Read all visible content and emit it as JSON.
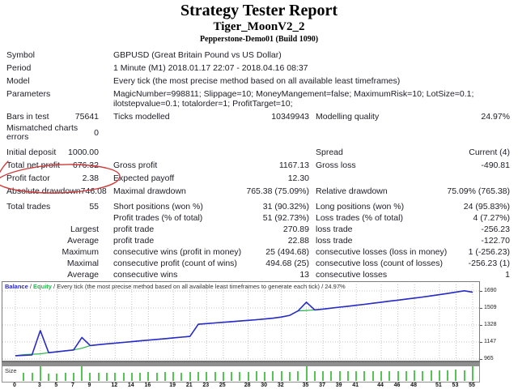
{
  "header": {
    "title": "Strategy Tester Report",
    "subtitle": "Tiger_MoonV2_2",
    "server": "Pepperstone-Demo01 (Build 1090)"
  },
  "report": {
    "rows": [
      {
        "a": "Symbol",
        "wide": "GBPUSD (Great Britain Pound vs US Dollar)"
      },
      {
        "a": "Period",
        "wide": "1 Minute (M1) 2018.01.17 22:07 - 2018.04.16 08:37"
      },
      {
        "a": "Model",
        "wide": "Every tick (the most precise method based on all available least timeframes)"
      },
      {
        "a": "Parameters",
        "wide": "MagicNumber=998811; Slippage=10; MoneyMangement=false; MaximumRisk=10; LotSize=0.1; ilotstepvalue=0.1; totalorder=1; ProfitTarget=10;",
        "tall": "p"
      },
      {
        "gap": true
      },
      {
        "a": "Bars in test",
        "b": "75641",
        "c": "Ticks modelled",
        "d": "10349943",
        "e": "Modelling quality",
        "f": "24.97%"
      },
      {
        "a": "Mismatched charts errors",
        "b": "0",
        "tall": "m"
      },
      {
        "gap": true
      },
      {
        "a": "Initial deposit",
        "b": "1000.00",
        "c": "",
        "d": "",
        "e": "Spread",
        "f": "Current (4)"
      },
      {
        "a": "Total net profit",
        "b": "676.32",
        "c": "Gross profit",
        "d": "1167.13",
        "e": "Gross loss",
        "f": "-490.81"
      },
      {
        "a": "Profit factor",
        "b": "2.38",
        "c": "Expected payoff",
        "d": "12.30",
        "e": "",
        "f": ""
      },
      {
        "a": "Absolute drawdown",
        "b": "746.08",
        "c": "Maximal drawdown",
        "d": "765.38 (75.09%)",
        "e": "Relative drawdown",
        "f": "75.09% (765.38)"
      },
      {
        "gap": true
      },
      {
        "a": "Total trades",
        "b": "55",
        "c": "Short positions (won %)",
        "d": "31 (90.32%)",
        "e": "Long positions (won %)",
        "f": "24 (95.83%)",
        "s": true
      },
      {
        "a": "",
        "b": "",
        "c": "Profit trades (% of total)",
        "d": "51 (92.73%)",
        "e": "Loss trades (% of total)",
        "f": "4 (7.27%)",
        "s": true
      },
      {
        "a": "",
        "b": "Largest",
        "c": "profit trade",
        "d": "270.89",
        "e": "loss trade",
        "f": "-256.23",
        "s": true
      },
      {
        "a": "",
        "b": "Average",
        "c": "profit trade",
        "d": "22.88",
        "e": "loss trade",
        "f": "-122.70",
        "s": true
      },
      {
        "a": "",
        "b": "Maximum",
        "c": "consecutive wins (profit in money)",
        "d": "25 (494.68)",
        "e": "consecutive losses (loss in money)",
        "f": "1 (-256.23)",
        "s": true
      },
      {
        "a": "",
        "b": "Maximal",
        "c": "consecutive profit (count of wins)",
        "d": "494.68 (25)",
        "e": "consecutive loss (count of losses)",
        "f": "-256.23 (1)",
        "s": true
      },
      {
        "a": "",
        "b": "Average",
        "c": "consecutive wins",
        "d": "13",
        "e": "consecutive losses",
        "f": "1",
        "s": true
      }
    ]
  },
  "annotation": {
    "target": "profit-factor-row",
    "color": "#cf3a3a"
  },
  "chart_data": {
    "type": "line",
    "legend": {
      "balance_label": "Balance",
      "sep": " / ",
      "equity_label": "Equity",
      "model_note": "Every tick (the most precise method based on all available least timeframes to generate each tick)",
      "quality": "24.97%"
    },
    "ylim": [
      965,
      1690
    ],
    "y_ticks": [
      1690,
      1509,
      1328,
      1147,
      965
    ],
    "x_ticks": [
      0,
      3,
      5,
      7,
      9,
      12,
      14,
      16,
      19,
      21,
      23,
      25,
      28,
      30,
      32,
      35,
      37,
      39,
      41,
      44,
      46,
      48,
      51,
      53,
      55
    ],
    "x_range": [
      0,
      55
    ],
    "grid": "dotted",
    "series": [
      {
        "name": "Equity",
        "color": "#28b44c",
        "values": [
          1000,
          1012,
          1016,
          1020,
          1032,
          1042,
          1052,
          1062,
          1080,
          1108,
          1118,
          1126,
          1134,
          1142,
          1150,
          1158,
          1166,
          1174,
          1182,
          1190,
          1198,
          1206,
          1335,
          1342,
          1349,
          1356,
          1363,
          1370,
          1377,
          1384,
          1391,
          1400,
          1412,
          1430,
          1478,
          1482,
          1488,
          1497,
          1507,
          1517,
          1527,
          1537,
          1548,
          1559,
          1570,
          1581,
          1592,
          1603,
          1614,
          1625,
          1637,
          1650,
          1663,
          1678,
          1692,
          1676
        ]
      },
      {
        "name": "Balance",
        "color": "#2a2ac8",
        "values": [
          1000,
          1004,
          1008,
          1268,
          1032,
          1042,
          1052,
          1062,
          1195,
          1108,
          1118,
          1126,
          1134,
          1142,
          1150,
          1158,
          1166,
          1174,
          1182,
          1190,
          1198,
          1206,
          1335,
          1342,
          1349,
          1356,
          1363,
          1370,
          1377,
          1384,
          1391,
          1400,
          1412,
          1430,
          1478,
          1570,
          1488,
          1497,
          1507,
          1517,
          1527,
          1537,
          1548,
          1559,
          1570,
          1581,
          1592,
          1603,
          1614,
          1625,
          1637,
          1650,
          1663,
          1678,
          1692,
          1676
        ]
      }
    ]
  },
  "size_panel": {
    "label": "Size",
    "bar_color": "#55c455",
    "bars": [
      0.5,
      0.52,
      1.0,
      0.42,
      0.45,
      0.5,
      0.48,
      1.0,
      0.5,
      0.48,
      0.5,
      0.52,
      0.5,
      0.52,
      0.5,
      0.55,
      0.52,
      0.55,
      0.55,
      0.52,
      0.55,
      0.55,
      0.58,
      0.55,
      0.58,
      0.58,
      0.55,
      0.58,
      0.6,
      0.58,
      0.6,
      0.6,
      0.58,
      0.6,
      1.0,
      0.62,
      0.6,
      0.62,
      0.62,
      0.6,
      0.62,
      0.65,
      0.62,
      0.65,
      0.65,
      0.62,
      0.65,
      0.68,
      0.65,
      0.68,
      0.7,
      0.68,
      0.72,
      0.7,
      1.0
    ]
  }
}
